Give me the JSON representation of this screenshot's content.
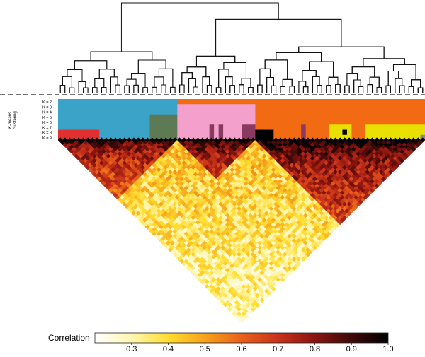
{
  "chart_data": {
    "type": "heatmap",
    "shape": "triangular-correlation-matrix",
    "n_samples": 80,
    "dendrogram": "on",
    "kmeans": {
      "axis_label_line1": "K-means",
      "axis_label_line2": "clustering",
      "rows": [
        {
          "label": "K = 2",
          "blocks": [
            [
              0,
              26,
              "#3ba3c8"
            ],
            [
              26,
              80,
              "#f26a12"
            ]
          ]
        },
        {
          "label": "K = 3",
          "blocks": [
            [
              0,
              26,
              "#3ba3c8"
            ],
            [
              26,
              43,
              "#f4a0cc"
            ],
            [
              43,
              80,
              "#f26a12"
            ]
          ]
        },
        {
          "label": "K = 4",
          "blocks": [
            [
              0,
              26,
              "#3ba3c8"
            ],
            [
              26,
              43,
              "#f4a0cc"
            ],
            [
              43,
              80,
              "#f26a12"
            ]
          ]
        },
        {
          "label": "K = 5",
          "blocks": [
            [
              0,
              20,
              "#3ba3c8"
            ],
            [
              20,
              26,
              "#5e7a55"
            ],
            [
              26,
              43,
              "#f4a0cc"
            ],
            [
              43,
              80,
              "#f26a12"
            ]
          ]
        },
        {
          "label": "K = 6",
          "blocks": [
            [
              0,
              20,
              "#3ba3c8"
            ],
            [
              20,
              26,
              "#5e7a55"
            ],
            [
              26,
              43,
              "#f4a0cc"
            ],
            [
              43,
              58,
              "#f26a12"
            ],
            [
              58,
              64,
              "#f26a12"
            ],
            [
              64,
              80,
              "#f26a12"
            ]
          ]
        },
        {
          "label": "K = 7",
          "blocks": [
            [
              0,
              20,
              "#3ba3c8"
            ],
            [
              20,
              26,
              "#5e7a55"
            ],
            [
              26,
              33,
              "#f4a0cc"
            ],
            [
              33,
              34,
              "#8a3a5e"
            ],
            [
              34,
              35,
              "#f4a0cc"
            ],
            [
              35,
              36,
              "#8a3a5e"
            ],
            [
              36,
              40,
              "#f4a0cc"
            ],
            [
              40,
              43,
              "#8a3a5e"
            ],
            [
              43,
              53,
              "#f26a12"
            ],
            [
              53,
              54,
              "#8a3a5e"
            ],
            [
              54,
              59,
              "#f26a12"
            ],
            [
              59,
              64,
              "#e8e000"
            ],
            [
              64,
              67,
              "#f26a12"
            ],
            [
              67,
              80,
              "#e8e000"
            ]
          ]
        },
        {
          "label": "K = 8",
          "blocks": [
            [
              0,
              9,
              "#e03030"
            ],
            [
              9,
              20,
              "#3ba3c8"
            ],
            [
              20,
              26,
              "#5e7a55"
            ],
            [
              26,
              33,
              "#f4a0cc"
            ],
            [
              33,
              34,
              "#8a3a5e"
            ],
            [
              34,
              35,
              "#f4a0cc"
            ],
            [
              35,
              36,
              "#8a3a5e"
            ],
            [
              36,
              40,
              "#f4a0cc"
            ],
            [
              40,
              43,
              "#8a3a5e"
            ],
            [
              43,
              47,
              "#000000"
            ],
            [
              47,
              53,
              "#f26a12"
            ],
            [
              53,
              54,
              "#8a3a5e"
            ],
            [
              54,
              59,
              "#f26a12"
            ],
            [
              59,
              62,
              "#e8e000"
            ],
            [
              62,
              63,
              "#000000"
            ],
            [
              63,
              64,
              "#e8e000"
            ],
            [
              64,
              67,
              "#f26a12"
            ],
            [
              67,
              80,
              "#e8e000"
            ]
          ]
        },
        {
          "label": "K = 9",
          "blocks": [
            [
              0,
              9,
              "#e03030"
            ],
            [
              9,
              20,
              "#3ba3c8"
            ],
            [
              20,
              26,
              "#5e7a55"
            ],
            [
              26,
              33,
              "#f4a0cc"
            ],
            [
              33,
              34,
              "#8a3a5e"
            ],
            [
              34,
              35,
              "#f4a0cc"
            ],
            [
              35,
              36,
              "#8a3a5e"
            ],
            [
              36,
              40,
              "#f4a0cc"
            ],
            [
              40,
              43,
              "#8a3a5e"
            ],
            [
              43,
              47,
              "#000000"
            ],
            [
              47,
              53,
              "#f26a12"
            ],
            [
              53,
              54,
              "#8a3a5e"
            ],
            [
              54,
              59,
              "#f26a12"
            ],
            [
              59,
              64,
              "#e8e000"
            ],
            [
              64,
              67,
              "#f26a12"
            ],
            [
              67,
              79,
              "#e8e000"
            ],
            [
              79,
              80,
              "#888888"
            ]
          ]
        }
      ]
    },
    "colorbar": {
      "label": "Correlation",
      "ticks": [
        "0.3",
        "0.4",
        "0.5",
        "0.6",
        "0.7",
        "0.8",
        "0.9",
        "1.0"
      ],
      "tick_values": [
        0.3,
        0.4,
        0.5,
        0.6,
        0.7,
        0.8,
        0.9,
        1.0
      ],
      "range": [
        0.2,
        1.0
      ],
      "colors": [
        "#ffffff",
        "#fff6b0",
        "#ffdd30",
        "#f7a21b",
        "#e8611a",
        "#c8321a",
        "#8a1410",
        "#3d0a08",
        "#000000"
      ]
    },
    "clusters": [
      {
        "start": 0,
        "end": 26,
        "within": 0.72
      },
      {
        "start": 26,
        "end": 43,
        "within": 0.74
      },
      {
        "start": 43,
        "end": 80,
        "within": 0.8
      }
    ],
    "between_cluster": 0.45
  }
}
